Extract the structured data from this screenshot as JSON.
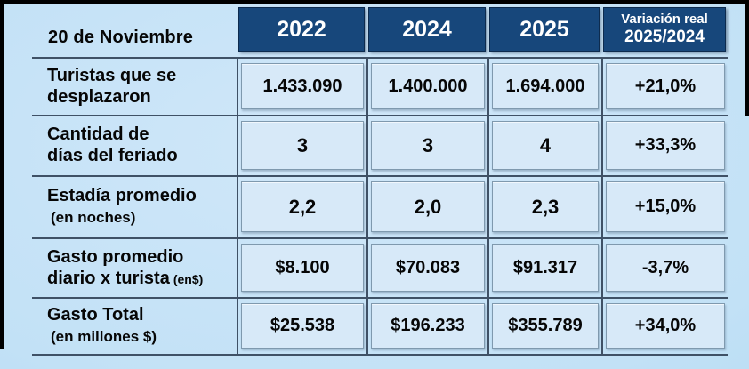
{
  "colors": {
    "page_bg": "#b9ddf4",
    "header_bg": "#17477b",
    "header_text": "#ffffff",
    "cell_bg": "#d7e9f8",
    "line": "#3f5166",
    "text": "#060606",
    "frame": "#000000"
  },
  "table": {
    "corner_label": "20 de Noviembre",
    "years": [
      "2022",
      "2024",
      "2025"
    ],
    "variation_line1": "Variación real",
    "variation_line2": "2025/2024"
  },
  "rows": [
    {
      "label_line1": "Turistas que se",
      "label_line2": "desplazaron",
      "label_note": "",
      "values": [
        "1.433.090",
        "1.400.000",
        "1.694.000"
      ],
      "variation": "+21,0%"
    },
    {
      "label_line1": "Cantidad de",
      "label_line2": "días del feriado",
      "label_note": "",
      "values": [
        "3",
        "3",
        "4"
      ],
      "variation": "+33,3%"
    },
    {
      "label_line1": "Estadía promedio",
      "label_line2": "",
      "label_note": "(en noches)",
      "values": [
        "2,2",
        "2,0",
        "2,3"
      ],
      "variation": "+15,0%"
    },
    {
      "label_line1": "Gasto promedio",
      "label_line2": "diario x turista",
      "label_note": "(en$)",
      "values": [
        "$8.100",
        "$70.083",
        "$91.317"
      ],
      "variation": "-3,7%"
    },
    {
      "label_line1": "Gasto Total",
      "label_line2": "",
      "label_note": "(en millones $)",
      "values": [
        "$25.538",
        "$196.233",
        "$355.789"
      ],
      "variation": "+34,0%"
    }
  ],
  "chart_data": {
    "type": "table",
    "title": "20 de Noviembre",
    "columns": [
      "2022",
      "2024",
      "2025",
      "Variación real 2025/2024"
    ],
    "rows": [
      {
        "label": "Turistas que se desplazaron",
        "values": [
          "1.433.090",
          "1.400.000",
          "1.694.000",
          "+21,0%"
        ]
      },
      {
        "label": "Cantidad de días del feriado",
        "values": [
          "3",
          "3",
          "4",
          "+33,3%"
        ]
      },
      {
        "label": "Estadía promedio (en noches)",
        "values": [
          "2,2",
          "2,0",
          "2,3",
          "+15,0%"
        ]
      },
      {
        "label": "Gasto promedio diario x turista (en$)",
        "values": [
          "$8.100",
          "$70.083",
          "$91.317",
          "-3,7%"
        ]
      },
      {
        "label": "Gasto Total (en millones $)",
        "values": [
          "$25.538",
          "$196.233",
          "$355.789",
          "+34,0%"
        ]
      }
    ]
  }
}
